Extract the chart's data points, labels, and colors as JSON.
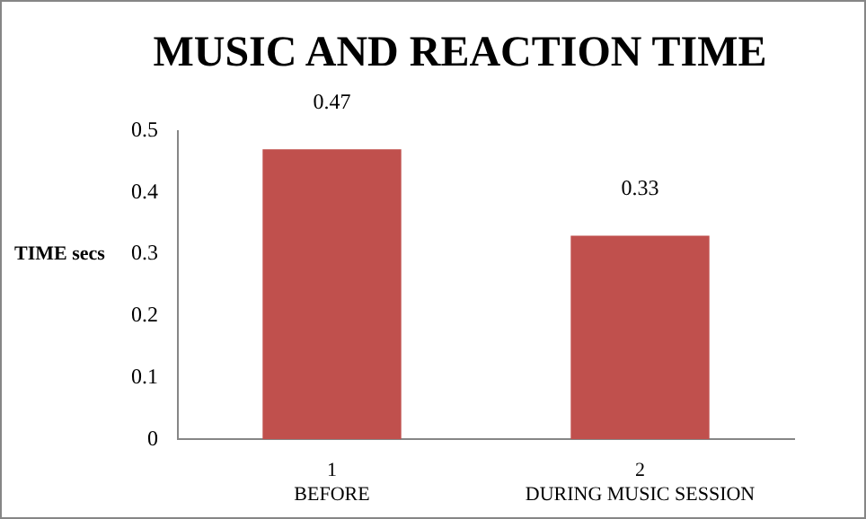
{
  "chart_data": {
    "type": "bar",
    "title": "MUSIC AND REACTION TIME",
    "ylabel": "TIME secs",
    "categories": [
      "1\nBEFORE",
      "2\nDURING MUSIC SESSION"
    ],
    "values": [
      0.47,
      0.33
    ],
    "color": "#c0504d",
    "ylim": [
      0,
      0.5
    ],
    "yticks": [
      0,
      0.1,
      0.2,
      0.3,
      0.4,
      0.5
    ],
    "grid": false,
    "legend": false,
    "data_labels": true
  }
}
